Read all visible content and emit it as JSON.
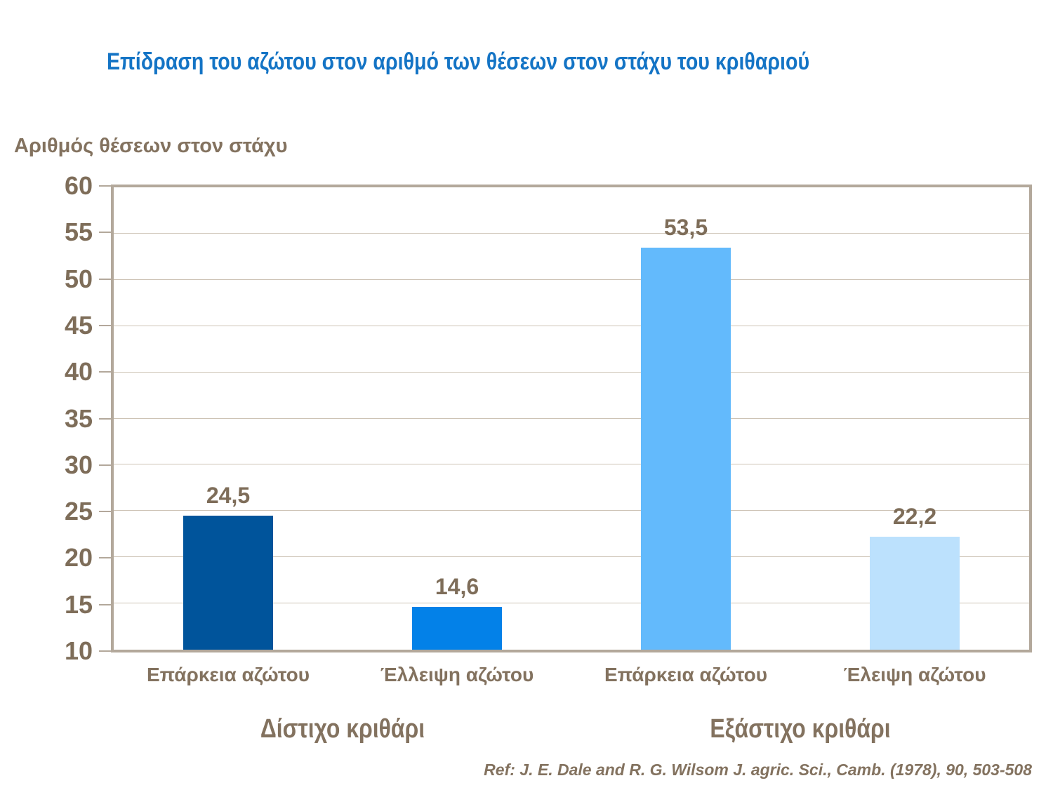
{
  "title": "Επίδραση του αζώτου στον αριθμό των θέσεων στον στάχυ του κριθαριού",
  "reference": "Ref: J. E. Dale and R. G. Wilsom J. agric. Sci., Camb. (1978), 90, 503-508",
  "colors": {
    "title_blue": "#1474C5",
    "text_brown": "#83725F",
    "axis_border": "#B3A89B",
    "gridline": "#CDC3B5",
    "background": "#FFFFFF"
  },
  "chart_data": {
    "type": "bar",
    "title": "Επίδραση του αζώτου στον αριθμό των θέσεων στον στάχυ του κριθαριού",
    "ylabel": "Αριθμός θέσεων στον στάχυ",
    "xlabel": "",
    "ylim": [
      10,
      60
    ],
    "ytick_step": 5,
    "grid": true,
    "legend": false,
    "categories": [
      "Επάρκεια αζώτου",
      "Έλλειψη αζώτου",
      "Επάρκεια αζώτου",
      "Έλειψη αζώτου"
    ],
    "values": [
      24.5,
      14.6,
      53.5,
      22.2
    ],
    "value_labels": [
      "24,5",
      "14,6",
      "53,5",
      "22,2"
    ],
    "bar_colors": [
      "#00549B",
      "#0381E8",
      "#63BAFC",
      "#BCE1FD"
    ],
    "groups": [
      {
        "label": "Δίστιχο κριθάρι",
        "bars": [
          0,
          1
        ]
      },
      {
        "label": "Εξάστιχο κριθάρι",
        "bars": [
          2,
          3
        ]
      }
    ]
  }
}
